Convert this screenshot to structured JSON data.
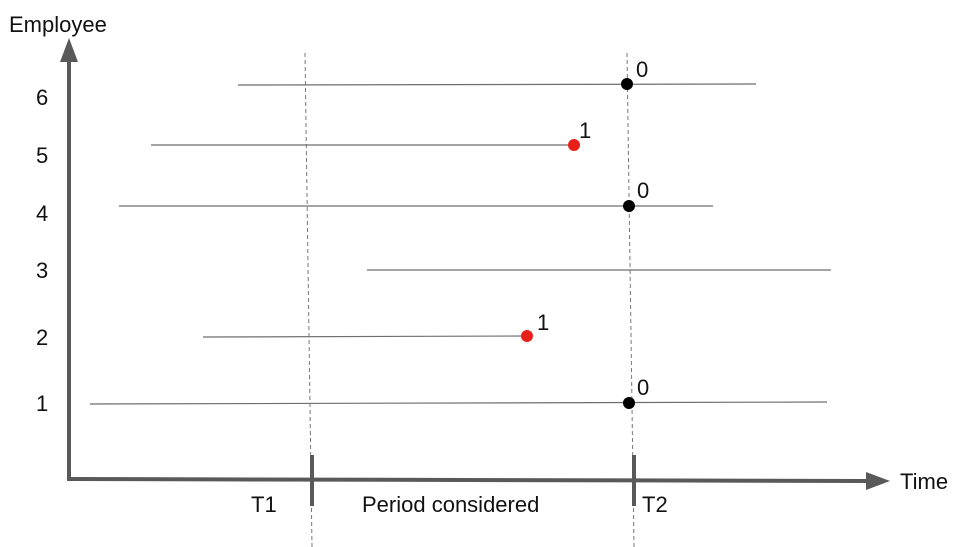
{
  "axes": {
    "y_label": "Employee",
    "x_label": "Time"
  },
  "markers": {
    "t1_label": "T1",
    "t2_label": "T2",
    "period_label": "Period considered"
  },
  "colors": {
    "axis": "#595959",
    "line": "#6e6e6e",
    "censored_point": "#000000",
    "event_point": "#e8201a"
  },
  "employees": [
    {
      "id": "1",
      "outcome": "0",
      "event": false
    },
    {
      "id": "2",
      "outcome": "1",
      "event": true
    },
    {
      "id": "3",
      "outcome": null,
      "event": null
    },
    {
      "id": "4",
      "outcome": "0",
      "event": false
    },
    {
      "id": "5",
      "outcome": "1",
      "event": true
    },
    {
      "id": "6",
      "outcome": "0",
      "event": false
    }
  ]
}
